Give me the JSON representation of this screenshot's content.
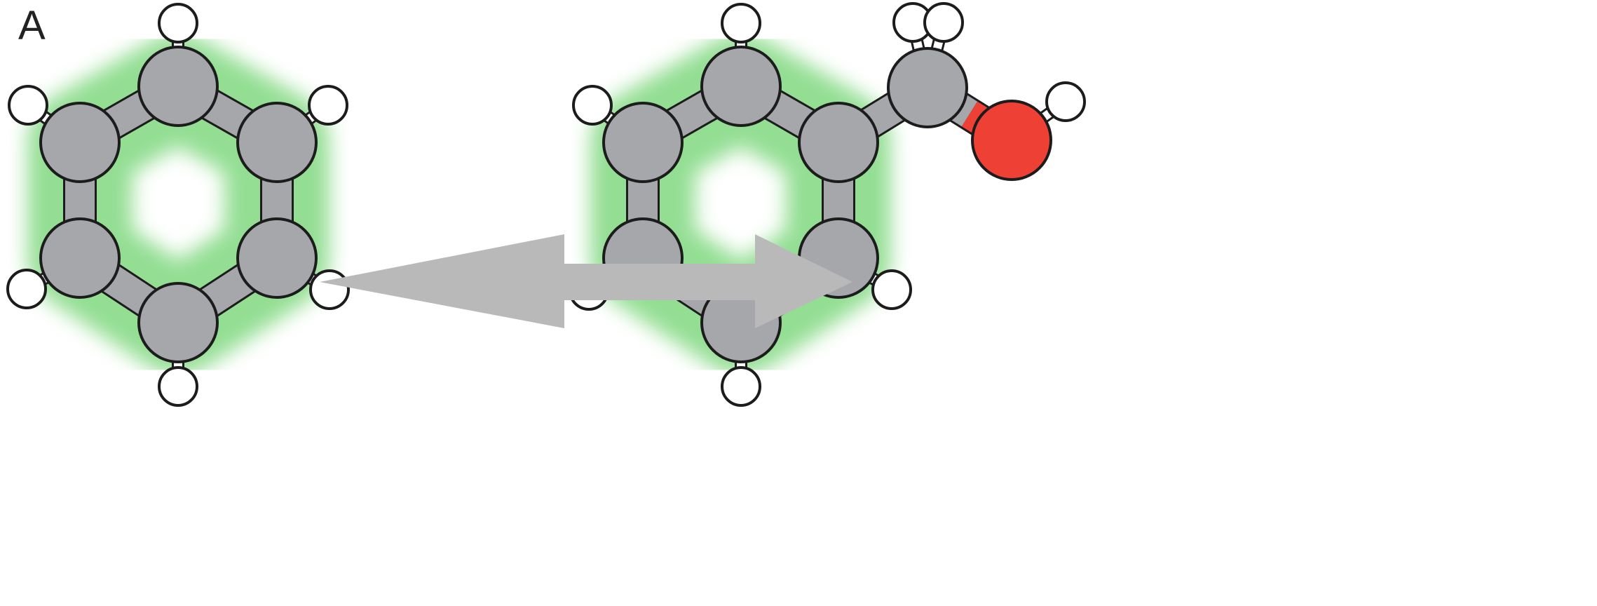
{
  "panel": {
    "label": "A"
  },
  "colors": {
    "carbon": "#a6a7ab",
    "hydrogen": "#ffffff",
    "oxygen": "#ee4035",
    "outline": "#1c1c1c",
    "aromatic_glow": "#6fd36f",
    "arrow": "#b9b9b9"
  },
  "molecules": [
    {
      "name": "benzene",
      "atoms": [
        "C",
        "C",
        "C",
        "C",
        "C",
        "C",
        "H",
        "H",
        "H",
        "H",
        "H",
        "H"
      ],
      "aromatic_ring": true
    },
    {
      "name": "benzyl-alcohol",
      "atoms": [
        "C",
        "C",
        "C",
        "C",
        "C",
        "C",
        "C",
        "O",
        "H",
        "H",
        "H",
        "H",
        "H",
        "H",
        "H",
        "H"
      ],
      "aromatic_ring": true
    }
  ],
  "connector": {
    "type": "double-headed-arrow"
  }
}
